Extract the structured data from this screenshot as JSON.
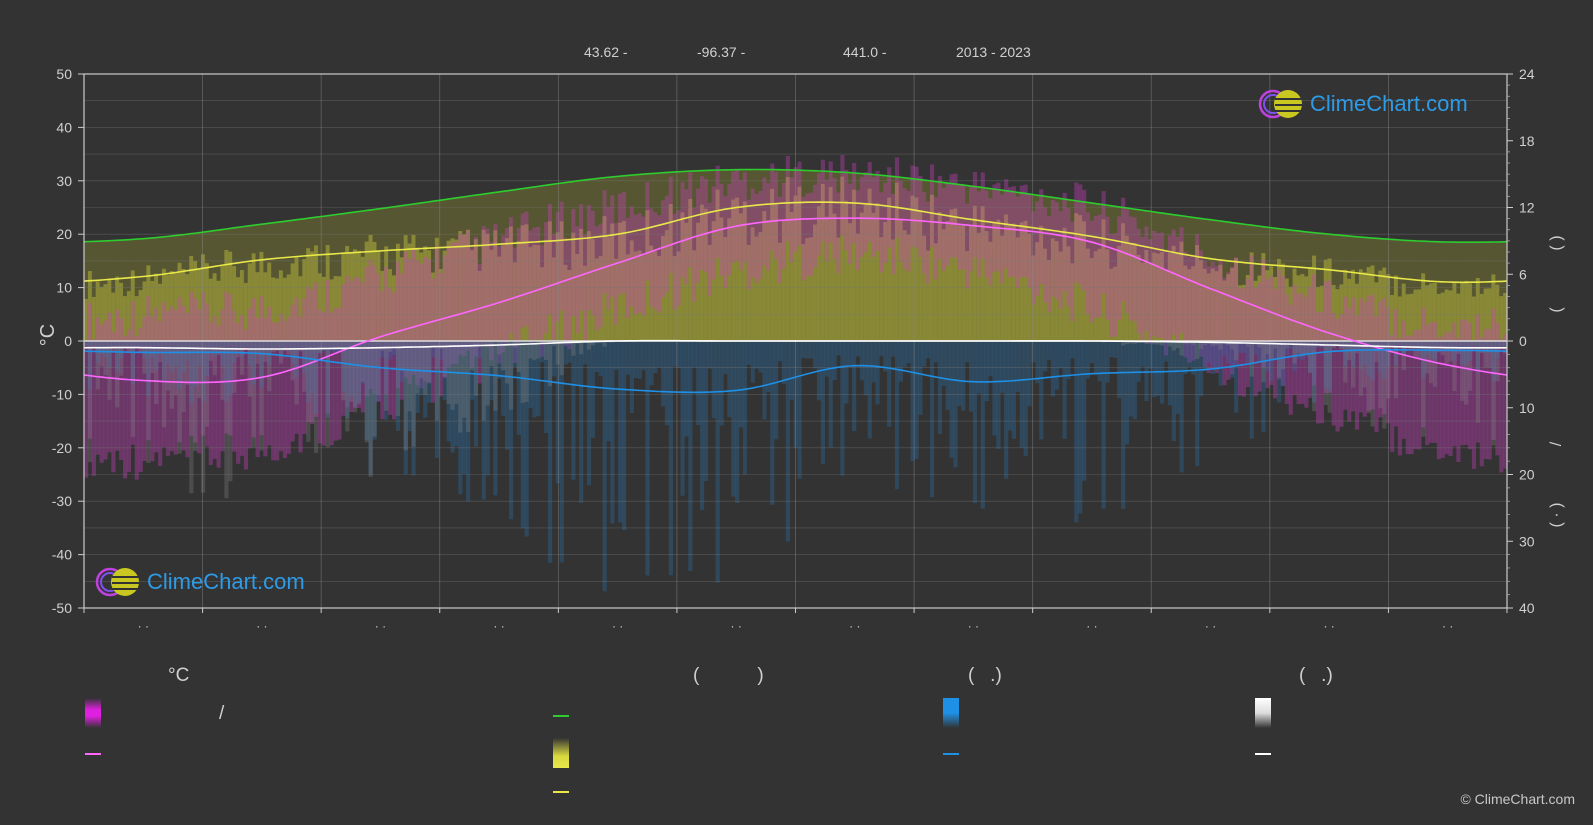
{
  "header": {
    "lat": "43.62 -",
    "lon": "-96.37 -",
    "elevation": "441.0 -",
    "period": "2013 - 2023"
  },
  "logo_text": "ClimeChart.com",
  "copyright": "© ClimeChart.com",
  "legend": {
    "temp_heading": "°C",
    "daylight_heading": "(           )",
    "rain_heading": "(   .)",
    "snow_heading": "(   .)",
    "temp_range_slash": "/"
  },
  "colors": {
    "background": "#333333",
    "daylight": "#2ecc2e",
    "sunshine": "#e8e84a",
    "temp_mean": "#ff66ff",
    "temp_range": "#e020e0",
    "rain": "#1e90e6",
    "snow": "#ffffff"
  },
  "chart_data": {
    "type": "line",
    "x_ticks_labels": [
      "· ·",
      "· ·",
      "· ·",
      "· ·",
      "· ·",
      "· ·",
      "· ·",
      "· ·",
      "· ·",
      "· ·",
      "· ·",
      "· ·"
    ],
    "y_left": {
      "label": "°C",
      "ylim": [
        -50,
        50
      ],
      "ticks": [
        50,
        40,
        30,
        20,
        10,
        0,
        -10,
        -20,
        -30,
        -40,
        -50
      ]
    },
    "y_right_top": {
      "ylim": [
        0,
        24
      ],
      "ticks": [
        24,
        18,
        12,
        6,
        0
      ]
    },
    "y_right_bottom": {
      "ylim": [
        0,
        40
      ],
      "ticks": [
        10,
        20,
        30,
        40
      ]
    },
    "y_right_label_glyphs": [
      "(   )",
      "(",
      "/",
      "(  ·  )"
    ],
    "grid": true,
    "months_mid": [
      0.5,
      1.5,
      2.5,
      3.5,
      4.5,
      5.5,
      6.5,
      7.5,
      8.5,
      9.5,
      10.5,
      11.5
    ],
    "series": [
      {
        "key": "daylight_hours",
        "axis": "right_top",
        "values": [
          9.2,
          10.5,
          11.9,
          13.4,
          14.8,
          15.4,
          15.1,
          13.9,
          12.4,
          10.9,
          9.6,
          8.9
        ]
      },
      {
        "key": "sunshine_hours",
        "axis": "right_top",
        "values": [
          5.8,
          7.3,
          8.1,
          8.7,
          9.6,
          12.0,
          12.4,
          10.9,
          9.4,
          7.4,
          6.4,
          5.3
        ]
      },
      {
        "key": "temp_mean_c",
        "axis": "left",
        "values": [
          -7.4,
          -6.8,
          0.8,
          7.2,
          14.6,
          21.5,
          23.0,
          21.6,
          18.5,
          9.8,
          1.5,
          -4.5
        ]
      },
      {
        "key": "rain_mm",
        "axis": "right_bottom",
        "values": [
          1.7,
          1.9,
          4.0,
          5.2,
          7.2,
          7.4,
          3.7,
          6.1,
          4.9,
          4.2,
          1.6,
          1.4
        ]
      },
      {
        "key": "snow_mm",
        "axis": "right_bottom",
        "values": [
          1.0,
          1.2,
          1.0,
          0.6,
          0.0,
          0.0,
          0.0,
          0.0,
          0.0,
          0.2,
          0.6,
          1.0
        ]
      }
    ],
    "temp_range_c": {
      "max": [
        5,
        6,
        12,
        19,
        25,
        30,
        31,
        29,
        25,
        16,
        8,
        3
      ],
      "min": [
        -22,
        -20,
        -12,
        -3,
        6,
        13,
        16,
        13,
        6,
        -4,
        -13,
        -20
      ]
    }
  }
}
